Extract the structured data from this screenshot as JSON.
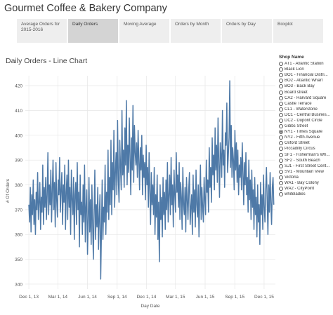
{
  "app": {
    "title": "Gourmet Coffee & Bakery Company"
  },
  "tabs": [
    {
      "label": "Average Orders for 2015-2016",
      "active": false
    },
    {
      "label": "Daily Orders",
      "active": true
    },
    {
      "label": "Moving Average",
      "active": false
    },
    {
      "label": "Orders by Month",
      "active": false
    },
    {
      "label": "Orders by Day",
      "active": false
    },
    {
      "label": "Boxplot",
      "active": false
    }
  ],
  "legend": {
    "title": "Shop Name",
    "selected": "NY1 - Times Square",
    "items": [
      "AT1 - Atlantic Station",
      "Black Lion",
      "BO1 - Financial Distri...",
      "BO2 - Atlantic Wharf",
      "BO3 - Back Bay",
      "Board street",
      "CA2 - Harvard Square",
      "Castle Terrace",
      "CL1 - Waterstone",
      "DC1 - Central Busines...",
      "DC2 - Dupont Circle",
      "Gibbs Street",
      "NY1 - Times Square",
      "NY2 - Fifth Avenue",
      "Oxford Street",
      "Piccadilly Circus",
      "SF1 - Fisherman's Wh...",
      "SF2 - South Beach",
      "SJ1 - First Street Cent...",
      "SV1 - Mountain View",
      "Victoria",
      "WA1 - Bay Colony",
      "WA2 - CityPoint",
      "whiteladies"
    ]
  },
  "colors": {
    "line": "#4e79a7",
    "grid": "#e6e6e6",
    "axis_text": "#555555"
  },
  "chart_data": {
    "type": "line",
    "title": "Daily Orders - Line Chart",
    "xlabel": "Day Date",
    "ylabel": "# Of Orders",
    "ylim": [
      338,
      424
    ],
    "xlim": [
      "2013-11-20",
      "2016-01-05"
    ],
    "grid": true,
    "xtick_labels": [
      {
        "label": "Dec 1, 13",
        "date": "2013-12-01"
      },
      {
        "label": "Mar 1, 14",
        "date": "2014-03-01"
      },
      {
        "label": "Jun 1, 14",
        "date": "2014-06-01"
      },
      {
        "label": "Sep 1, 14",
        "date": "2014-09-01"
      },
      {
        "label": "Dec 1, 14",
        "date": "2014-12-01"
      },
      {
        "label": "Mar 1, 15",
        "date": "2015-03-01"
      },
      {
        "label": "Jun 1, 15",
        "date": "2015-06-01"
      },
      {
        "label": "Sep 1, 15",
        "date": "2015-09-01"
      },
      {
        "label": "Dec 1, 15",
        "date": "2015-12-01"
      }
    ],
    "yticks": [
      340,
      350,
      360,
      370,
      380,
      390,
      400,
      410,
      420
    ],
    "series": [
      {
        "x_start": "2013-12-01",
        "x_end": "2015-12-31",
        "values": [
          372,
          365,
          379,
          361,
          376,
          368,
          382,
          364,
          374,
          360,
          377,
          370,
          385,
          366,
          373,
          381,
          362,
          375,
          369,
          388,
          364,
          379,
          371,
          383,
          366,
          376,
          393,
          368,
          380,
          372,
          386,
          365,
          378,
          390,
          370,
          381,
          363,
          389,
          374,
          367,
          382,
          376,
          391,
          369,
          378,
          385,
          364,
          380,
          373,
          388,
          362,
          377,
          384,
          366,
          390,
          371,
          379,
          360,
          386,
          374,
          368,
          383,
          358,
          376,
          381,
          364,
          389,
          370,
          377,
          355,
          384,
          368,
          373,
          360,
          380,
          365,
          388,
          357,
          371,
          378,
          352,
          366,
          383,
          361,
          374,
          356,
          380,
          364,
          350,
          369,
          386,
          358,
          372,
          363,
          379,
          354,
          367,
          376,
          342,
          361,
          382,
          358,
          371,
          365,
          388,
          360,
          377,
          369,
          394,
          366,
          383,
          372,
          398,
          368,
          389,
          378,
          402,
          371,
          385,
          393,
          376,
          406,
          382,
          373,
          398,
          387,
          378,
          410,
          384,
          394,
          379,
          403,
          388,
          414,
          380,
          396,
          385,
          407,
          391,
          376,
          399,
          386,
          412,
          381,
          404,
          393,
          388,
          397,
          383,
          402,
          390,
          378,
          395,
          386,
          400,
          376,
          392,
          383,
          389,
          374,
          396,
          380,
          387,
          371,
          393,
          378,
          364,
          385,
          372,
          380,
          368,
          387,
          360,
          376,
          367,
          384,
          358,
          373,
          349,
          380,
          366,
          375,
          359,
          383,
          368,
          377,
          362,
          382,
          370,
          389,
          365,
          376,
          384,
          368,
          391,
          372,
          380,
          363,
          386,
          376,
          369,
          393,
          377,
          384,
          371,
          389,
          366,
          381,
          375,
          362,
          387,
          372,
          368,
          379,
          361,
          383,
          374,
          366,
          378,
          385,
          364,
          371,
          376,
          360,
          384,
          369,
          378,
          363,
          386,
          372,
          367,
          380,
          359,
          375,
          388,
          366,
          379,
          371,
          365,
          383,
          374,
          368,
          390,
          377,
          382,
          369,
          395,
          379,
          387,
          373,
          399,
          384,
          392,
          378,
          403,
          386,
          396,
          381,
          407,
          389,
          375,
          397,
          392,
          383,
          410,
          388,
          394,
          379,
          401,
          396,
          413,
          385,
          392,
          399,
          422,
          387,
          404,
          383,
          395,
          390,
          378,
          402,
          386,
          397,
          381,
          394,
          376,
          388,
          383,
          391,
          378,
          397,
          385,
          372,
          389,
          380,
          393,
          376,
          383,
          369,
          390,
          374,
          382,
          366,
          386,
          371,
          378,
          362,
          383,
          368,
          375,
          359,
          380,
          365,
          372,
          356,
          381,
          368,
          376,
          362,
          384,
          371,
          365,
          378,
          387,
          374,
          360,
          380,
          369,
          385,
          373,
          364,
          379,
          383,
          372
        ]
      }
    ]
  }
}
